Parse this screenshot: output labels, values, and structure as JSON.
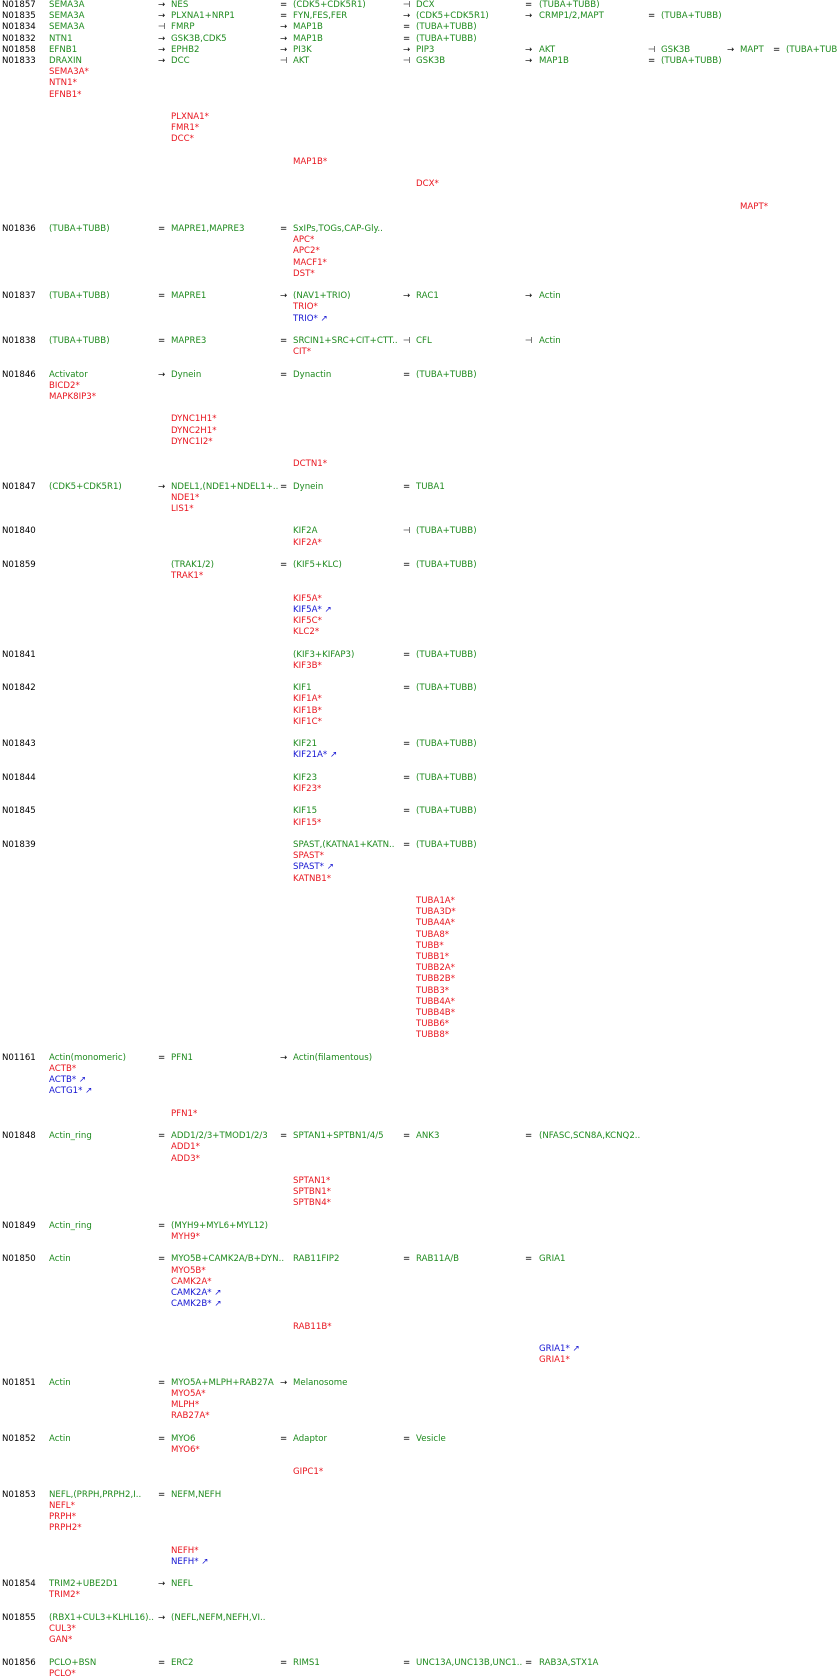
{
  "colors": {
    "node": "#1e8a1e",
    "mutation": "#e8141e",
    "upregulation": "#1414d2",
    "id": "#000000"
  },
  "rows": [
    {
      "id": "N01857",
      "cells": [
        {
          "c": 0,
          "t": "SEMA3A"
        },
        {
          "c": 1,
          "op": "→",
          "t": "NES"
        },
        {
          "c": 2,
          "op": "=",
          "t": "(CDK5+CDK5R1)"
        },
        {
          "c": 3,
          "op": "⊣",
          "t": "DCX"
        },
        {
          "c": 4,
          "op": "=",
          "t": "(TUBA+TUBB)"
        }
      ]
    },
    {
      "id": "N01835",
      "cells": [
        {
          "c": 0,
          "t": "SEMA3A"
        },
        {
          "c": 1,
          "op": "→",
          "t": "PLXNA1+NRP1"
        },
        {
          "c": 2,
          "op": "=",
          "t": "FYN,FES,FER"
        },
        {
          "c": 3,
          "op": "→",
          "t": "(CDK5+CDK5R1)"
        },
        {
          "c": 4,
          "op": "→",
          "t": "CRMP1/2,MAPT"
        },
        {
          "c": 5,
          "op": "=",
          "t": "(TUBA+TUBB)"
        }
      ]
    },
    {
      "id": "N01834",
      "cells": [
        {
          "c": 0,
          "t": "SEMA3A"
        },
        {
          "c": 1,
          "op": "⊣",
          "t": "FMRP"
        },
        {
          "c": 2,
          "op": "→",
          "t": "MAP1B"
        },
        {
          "c": 3,
          "op": "=",
          "t": "(TUBA+TUBB)"
        }
      ]
    },
    {
      "id": "N01832",
      "cells": [
        {
          "c": 0,
          "t": "NTN1"
        },
        {
          "c": 1,
          "op": "→",
          "t": "GSK3B,CDK5"
        },
        {
          "c": 2,
          "op": "→",
          "t": "MAP1B"
        },
        {
          "c": 3,
          "op": "=",
          "t": "(TUBA+TUBB)"
        }
      ]
    },
    {
      "id": "N01858",
      "cells": [
        {
          "c": 0,
          "t": "EFNB1"
        },
        {
          "c": 1,
          "op": "→",
          "t": "EPHB2"
        },
        {
          "c": 2,
          "op": "→",
          "t": "PI3K"
        },
        {
          "c": 3,
          "op": "→",
          "t": "PIP3"
        },
        {
          "c": 4,
          "op": "→",
          "t": "AKT"
        },
        {
          "c": 5,
          "op": "⊣",
          "t": "GSK3B"
        },
        {
          "c": 6,
          "op": "→",
          "t": "MAPT"
        },
        {
          "c": 7,
          "op": "=",
          "t": "(TUBA+TUBB)"
        }
      ]
    },
    {
      "id": "N01833",
      "cells": [
        {
          "c": 0,
          "t": "DRAXIN"
        },
        {
          "c": 1,
          "op": "→",
          "t": "DCC"
        },
        {
          "c": 2,
          "op": "⊣",
          "t": "AKT"
        },
        {
          "c": 3,
          "op": "⊣",
          "t": "GSK3B"
        },
        {
          "c": 4,
          "op": "→",
          "t": "MAP1B"
        },
        {
          "c": 5,
          "op": "=",
          "t": "(TUBA+TUBB)"
        }
      ]
    }
  ],
  "genes": [
    {
      "c": 0,
      "t": "SEMA3A*",
      "k": "r"
    },
    {
      "c": 0,
      "t": "NTN1*",
      "k": "r"
    },
    {
      "c": 0,
      "t": "EFNB1*",
      "k": "r"
    },
    {
      "c": 1,
      "t": "PLXNA1*",
      "k": "r"
    },
    {
      "c": 1,
      "t": "FMR1*",
      "k": "r"
    },
    {
      "c": 1,
      "t": "DCC*",
      "k": "r"
    },
    {
      "c": 2,
      "t": "MAP1B*",
      "k": "r"
    },
    {
      "c": 3,
      "t": "DCX*",
      "k": "r"
    },
    {
      "c": 6,
      "t": "MAPT*",
      "k": "r"
    }
  ],
  "blocks": [
    {
      "id": "N01836",
      "cells": [
        {
          "c": 0,
          "t": "(TUBA+TUBB)"
        },
        {
          "c": 1,
          "op": "=",
          "t": "MAPRE1,MAPRE3"
        },
        {
          "c": 2,
          "op": "=",
          "t": "SxIPs,TOGs,CAP-Gly.."
        }
      ],
      "genes": [
        {
          "c": 2,
          "t": "APC*",
          "k": "r"
        },
        {
          "c": 2,
          "t": "APC2*",
          "k": "r"
        },
        {
          "c": 2,
          "t": "MACF1*",
          "k": "r"
        },
        {
          "c": 2,
          "t": "DST*",
          "k": "r"
        }
      ]
    },
    {
      "id": "N01837",
      "cells": [
        {
          "c": 0,
          "t": "(TUBA+TUBB)"
        },
        {
          "c": 1,
          "op": "=",
          "t": "MAPRE1"
        },
        {
          "c": 2,
          "op": "→",
          "t": "(NAV1+TRIO)"
        },
        {
          "c": 3,
          "op": "→",
          "t": "RAC1"
        },
        {
          "c": 4,
          "op": "→",
          "t": "Actin"
        }
      ],
      "genes": [
        {
          "c": 2,
          "t": "TRIO*",
          "k": "r"
        },
        {
          "c": 2,
          "t": "TRIO* ↗",
          "k": "b"
        }
      ]
    },
    {
      "id": "N01838",
      "cells": [
        {
          "c": 0,
          "t": "(TUBA+TUBB)"
        },
        {
          "c": 1,
          "op": "=",
          "t": "MAPRE3"
        },
        {
          "c": 2,
          "op": "=",
          "t": "SRCIN1+SRC+CIT+CTT.."
        },
        {
          "c": 3,
          "op": "⊣",
          "t": "CFL"
        },
        {
          "c": 4,
          "op": "⊣",
          "t": "Actin"
        }
      ],
      "genes": [
        {
          "c": 2,
          "t": "CIT*",
          "k": "r"
        }
      ]
    },
    {
      "id": "N01846",
      "cells": [
        {
          "c": 0,
          "t": "Activator"
        },
        {
          "c": 1,
          "op": "→",
          "t": "Dynein"
        },
        {
          "c": 2,
          "op": "=",
          "t": "Dynactin"
        },
        {
          "c": 3,
          "op": "=",
          "t": "(TUBA+TUBB)"
        }
      ],
      "genes": [
        {
          "c": 0,
          "t": "BICD2*",
          "k": "r"
        },
        {
          "c": 0,
          "t": "MAPK8IP3*",
          "k": "r"
        },
        {
          "c": 1,
          "t": "DYNC1H1*",
          "k": "r"
        },
        {
          "c": 1,
          "t": "DYNC2H1*",
          "k": "r"
        },
        {
          "c": 1,
          "t": "DYNC1I2*",
          "k": "r"
        },
        {
          "c": 2,
          "t": "DCTN1*",
          "k": "r"
        }
      ]
    },
    {
      "id": "N01847",
      "cells": [
        {
          "c": 0,
          "t": "(CDK5+CDK5R1)"
        },
        {
          "c": 1,
          "op": "→",
          "t": "NDEL1,(NDE1+NDEL1+.."
        },
        {
          "c": 2,
          "op": "=",
          "t": "Dynein"
        },
        {
          "c": 3,
          "op": "=",
          "t": "TUBA1"
        }
      ],
      "genes": [
        {
          "c": 1,
          "t": "NDE1*",
          "k": "r"
        },
        {
          "c": 1,
          "t": "LIS1*",
          "k": "r"
        }
      ]
    },
    {
      "id": "N01840",
      "cells": [
        {
          "c": 2,
          "t": "KIF2A"
        },
        {
          "c": 3,
          "op": "⊣",
          "t": "(TUBA+TUBB)"
        }
      ],
      "genes": [
        {
          "c": 2,
          "t": "KIF2A*",
          "k": "r"
        }
      ]
    },
    {
      "id": "N01859",
      "cells": [
        {
          "c": 1,
          "t": "(TRAK1/2)"
        },
        {
          "c": 2,
          "op": "=",
          "t": "(KIF5+KLC)"
        },
        {
          "c": 3,
          "op": "=",
          "t": "(TUBA+TUBB)"
        }
      ],
      "genes": [
        {
          "c": 1,
          "t": "TRAK1*",
          "k": "r"
        },
        {
          "c": 2,
          "t": "KIF5A*",
          "k": "r"
        },
        {
          "c": 2,
          "t": "KIF5A* ↗",
          "k": "b"
        },
        {
          "c": 2,
          "t": "KIF5C*",
          "k": "r"
        },
        {
          "c": 2,
          "t": "KLC2*",
          "k": "r"
        }
      ]
    },
    {
      "id": "N01841",
      "cells": [
        {
          "c": 2,
          "t": "(KIF3+KIFAP3)"
        },
        {
          "c": 3,
          "op": "=",
          "t": "(TUBA+TUBB)"
        }
      ],
      "genes": [
        {
          "c": 2,
          "t": "KIF3B*",
          "k": "r"
        }
      ]
    },
    {
      "id": "N01842",
      "cells": [
        {
          "c": 2,
          "t": "KIF1"
        },
        {
          "c": 3,
          "op": "=",
          "t": "(TUBA+TUBB)"
        }
      ],
      "genes": [
        {
          "c": 2,
          "t": "KIF1A*",
          "k": "r"
        },
        {
          "c": 2,
          "t": "KIF1B*",
          "k": "r"
        },
        {
          "c": 2,
          "t": "KIF1C*",
          "k": "r"
        }
      ]
    },
    {
      "id": "N01843",
      "cells": [
        {
          "c": 2,
          "t": "KIF21"
        },
        {
          "c": 3,
          "op": "=",
          "t": "(TUBA+TUBB)"
        }
      ],
      "genes": [
        {
          "c": 2,
          "t": "KIF21A* ↗",
          "k": "b"
        }
      ]
    },
    {
      "id": "N01844",
      "cells": [
        {
          "c": 2,
          "t": "KIF23"
        },
        {
          "c": 3,
          "op": "=",
          "t": "(TUBA+TUBB)"
        }
      ],
      "genes": [
        {
          "c": 2,
          "t": "KIF23*",
          "k": "r"
        }
      ]
    },
    {
      "id": "N01845",
      "cells": [
        {
          "c": 2,
          "t": "KIF15"
        },
        {
          "c": 3,
          "op": "=",
          "t": "(TUBA+TUBB)"
        }
      ],
      "genes": [
        {
          "c": 2,
          "t": "KIF15*",
          "k": "r"
        }
      ]
    },
    {
      "id": "N01839",
      "cells": [
        {
          "c": 2,
          "t": "SPAST,(KATNA1+KATN.."
        },
        {
          "c": 3,
          "op": "=",
          "t": "(TUBA+TUBB)"
        }
      ],
      "genes": [
        {
          "c": 2,
          "t": "SPAST*",
          "k": "r"
        },
        {
          "c": 2,
          "t": "SPAST* ↗",
          "k": "b"
        },
        {
          "c": 2,
          "t": "KATNB1*",
          "k": "r"
        },
        {
          "c": 3,
          "t": "TUBA1A*",
          "k": "r"
        },
        {
          "c": 3,
          "t": "TUBA3D*",
          "k": "r"
        },
        {
          "c": 3,
          "t": "TUBA4A*",
          "k": "r"
        },
        {
          "c": 3,
          "t": "TUBA8*",
          "k": "r"
        },
        {
          "c": 3,
          "t": "TUBB*",
          "k": "r"
        },
        {
          "c": 3,
          "t": "TUBB1*",
          "k": "r"
        },
        {
          "c": 3,
          "t": "TUBB2A*",
          "k": "r"
        },
        {
          "c": 3,
          "t": "TUBB2B*",
          "k": "r"
        },
        {
          "c": 3,
          "t": "TUBB3*",
          "k": "r"
        },
        {
          "c": 3,
          "t": "TUBB4A*",
          "k": "r"
        },
        {
          "c": 3,
          "t": "TUBB4B*",
          "k": "r"
        },
        {
          "c": 3,
          "t": "TUBB6*",
          "k": "r"
        },
        {
          "c": 3,
          "t": "TUBB8*",
          "k": "r"
        }
      ]
    },
    {
      "id": "N01161",
      "cells": [
        {
          "c": 0,
          "t": "Actin(monomeric)"
        },
        {
          "c": 1,
          "op": "=",
          "t": "PFN1"
        },
        {
          "c": 2,
          "op": "→",
          "t": "Actin(filamentous)"
        }
      ],
      "genes": [
        {
          "c": 0,
          "t": "ACTB*",
          "k": "r"
        },
        {
          "c": 0,
          "t": "ACTB* ↗",
          "k": "b"
        },
        {
          "c": 0,
          "t": "ACTG1* ↗",
          "k": "b"
        },
        {
          "c": 1,
          "t": "PFN1*",
          "k": "r"
        }
      ]
    },
    {
      "id": "N01848",
      "cells": [
        {
          "c": 0,
          "t": "Actin_ring"
        },
        {
          "c": 1,
          "op": "=",
          "t": "ADD1/2/3+TMOD1/2/3"
        },
        {
          "c": 2,
          "op": "=",
          "t": "SPTAN1+SPTBN1/4/5"
        },
        {
          "c": 3,
          "op": "=",
          "t": "ANK3"
        },
        {
          "c": 4,
          "op": "=",
          "t": "(NFASC,SCN8A,KCNQ2.."
        }
      ],
      "genes": [
        {
          "c": 1,
          "t": "ADD1*",
          "k": "r"
        },
        {
          "c": 1,
          "t": "ADD3*",
          "k": "r"
        },
        {
          "c": 2,
          "t": "SPTAN1*",
          "k": "r"
        },
        {
          "c": 2,
          "t": "SPTBN1*",
          "k": "r"
        },
        {
          "c": 2,
          "t": "SPTBN4*",
          "k": "r"
        }
      ]
    },
    {
      "id": "N01849",
      "cells": [
        {
          "c": 0,
          "t": "Actin_ring"
        },
        {
          "c": 1,
          "op": "=",
          "t": "(MYH9+MYL6+MYL12)"
        }
      ],
      "genes": [
        {
          "c": 1,
          "t": "MYH9*",
          "k": "r"
        }
      ]
    },
    {
      "id": "N01850",
      "cells": [
        {
          "c": 0,
          "t": "Actin"
        },
        {
          "c": 1,
          "op": "=",
          "t": "MYO5B+CAMK2A/B+DYN.."
        },
        {
          "c": 2,
          "t": "RAB11FIP2"
        },
        {
          "c": 3,
          "op": "=",
          "t": "RAB11A/B"
        },
        {
          "c": 4,
          "op": "=",
          "t": "GRIA1"
        }
      ],
      "genes": [
        {
          "c": 1,
          "t": "MYO5B*",
          "k": "r"
        },
        {
          "c": 1,
          "t": "CAMK2A*",
          "k": "r"
        },
        {
          "c": 1,
          "t": "CAMK2A* ↗",
          "k": "b"
        },
        {
          "c": 1,
          "t": "CAMK2B* ↗",
          "k": "b"
        },
        {
          "c": 2,
          "t": "RAB11B*",
          "k": "r"
        },
        {
          "c": 4,
          "t": "GRIA1* ↗",
          "k": "b"
        },
        {
          "c": 4,
          "t": "GRIA1*",
          "k": "r"
        }
      ]
    },
    {
      "id": "N01851",
      "cells": [
        {
          "c": 0,
          "t": "Actin"
        },
        {
          "c": 1,
          "op": "=",
          "t": "MYO5A+MLPH+RAB27A"
        },
        {
          "c": 2,
          "op": "→",
          "t": "Melanosome"
        }
      ],
      "genes": [
        {
          "c": 1,
          "t": "MYO5A*",
          "k": "r"
        },
        {
          "c": 1,
          "t": "MLPH*",
          "k": "r"
        },
        {
          "c": 1,
          "t": "RAB27A*",
          "k": "r"
        }
      ]
    },
    {
      "id": "N01852",
      "cells": [
        {
          "c": 0,
          "t": "Actin"
        },
        {
          "c": 1,
          "op": "=",
          "t": "MYO6"
        },
        {
          "c": 2,
          "op": "=",
          "t": "Adaptor"
        },
        {
          "c": 3,
          "op": "=",
          "t": "Vesicle"
        }
      ],
      "genes": [
        {
          "c": 1,
          "t": "MYO6*",
          "k": "r"
        },
        {
          "c": 2,
          "t": "GIPC1*",
          "k": "r"
        }
      ]
    },
    {
      "id": "N01853",
      "cells": [
        {
          "c": 0,
          "t": "NEFL,(PRPH,PRPH2,I.."
        },
        {
          "c": 1,
          "op": "=",
          "t": "NEFM,NEFH"
        }
      ],
      "genes": [
        {
          "c": 0,
          "t": "NEFL*",
          "k": "r"
        },
        {
          "c": 0,
          "t": "PRPH*",
          "k": "r"
        },
        {
          "c": 0,
          "t": "PRPH2*",
          "k": "r"
        },
        {
          "c": 1,
          "t": "NEFH*",
          "k": "r"
        },
        {
          "c": 1,
          "t": "NEFH* ↗",
          "k": "b"
        }
      ]
    },
    {
      "id": "N01854",
      "cells": [
        {
          "c": 0,
          "t": "TRIM2+UBE2D1"
        },
        {
          "c": 1,
          "op": "→",
          "t": "NEFL"
        }
      ],
      "genes": [
        {
          "c": 0,
          "t": "TRIM2*",
          "k": "r"
        }
      ]
    },
    {
      "id": "N01855",
      "cells": [
        {
          "c": 0,
          "t": "(RBX1+CUL3+KLHL16).."
        },
        {
          "c": 1,
          "op": "→",
          "t": "(NEFL,NEFM,NEFH,VI.."
        }
      ],
      "genes": [
        {
          "c": 0,
          "t": "CUL3*",
          "k": "r"
        },
        {
          "c": 0,
          "t": "GAN*",
          "k": "r"
        }
      ]
    },
    {
      "id": "N01856",
      "cells": [
        {
          "c": 0,
          "t": "PCLO+BSN"
        },
        {
          "c": 1,
          "op": "=",
          "t": "ERC2"
        },
        {
          "c": 2,
          "op": "=",
          "t": "RIMS1"
        },
        {
          "c": 3,
          "op": "=",
          "t": "UNC13A,UNC13B,UNC1.."
        },
        {
          "c": 4,
          "op": "=",
          "t": "RAB3A,STX1A"
        }
      ],
      "genes": [
        {
          "c": 0,
          "t": "PCLO*",
          "k": "r"
        }
      ]
    }
  ]
}
